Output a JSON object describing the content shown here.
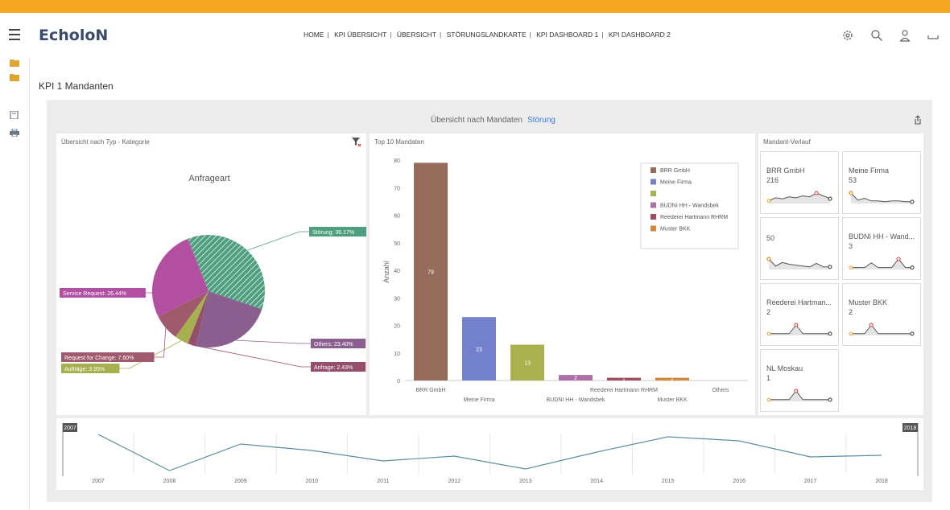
{
  "app": {
    "title": "EcholoN"
  },
  "nav": [
    "HOME",
    "KPI ÜBERSICHT",
    "ÜBERSICHT",
    "STÖRUNGSLANDKARTE",
    "KPI DASHBOARD 1",
    "KPI DASHBOARD 2"
  ],
  "page_title": "KPI 1 Mandanten",
  "panel": {
    "title": "Übersicht nach Mandaten",
    "filter_link": "Störung"
  },
  "pie_card": {
    "title": "Übersicht nach Typ - Kategorie"
  },
  "bar_card": {
    "title": "Top 10 Mandaten"
  },
  "spark_card": {
    "title": "Mandant-Verlauf"
  },
  "colors": {
    "accent": "#f5a623",
    "brand": "#3a4a6b",
    "link": "#3a7bd5"
  },
  "icons": [
    "menu-icon",
    "gear-icon",
    "search-icon",
    "user-icon",
    "folder-icon",
    "book-icon",
    "print-icon",
    "share-icon",
    "filter-clear-icon"
  ],
  "chart_data": [
    {
      "type": "pie",
      "title": "Anfrageart",
      "slices": [
        {
          "label": "Störung: 36.17%",
          "value": 36.17,
          "color": "#4f9e7f"
        },
        {
          "label": "Others: 23.40%",
          "value": 23.4,
          "color": "#8a5f8f"
        },
        {
          "label": "Anfrage: 2.43%",
          "value": 2.43,
          "color": "#94506a"
        },
        {
          "label": "Aufträge: 3.95%",
          "value": 3.95,
          "color": "#a6b04e"
        },
        {
          "label": "Request for Change: 7.60%",
          "value": 7.6,
          "color": "#a05a6e"
        },
        {
          "label": "Service Request: 26.44%",
          "value": 26.44,
          "color": "#b24fa0"
        }
      ]
    },
    {
      "type": "bar",
      "ylabel": "Anzahl",
      "ylim": [
        0,
        80
      ],
      "yticks": [
        0,
        10,
        20,
        30,
        40,
        50,
        60,
        70,
        80
      ],
      "categories": [
        "BRR GmbH",
        "Meine Firma",
        "",
        "BUDNI HH - Wandsbek",
        "Reederei Hartmann RHRM",
        "Muster BKK",
        "Others"
      ],
      "values": [
        79,
        23,
        13,
        2,
        1,
        1,
        0
      ],
      "colors": [
        "#956b5a",
        "#7381cc",
        "#a9b24e",
        "#ae6fa8",
        "#a24c5e",
        "#d1883a",
        "#cccccc"
      ],
      "legend": [
        {
          "label": "BRR GmbH",
          "color": "#956b5a"
        },
        {
          "label": "Meine Firma",
          "color": "#7381cc"
        },
        {
          "label": "",
          "color": "#a9b24e"
        },
        {
          "label": "BUDNI HH - Wandsbek",
          "color": "#ae6fa8"
        },
        {
          "label": "Reederei Hartmann RHRM",
          "color": "#a24c5e"
        },
        {
          "label": "Muster BKK",
          "color": "#d1883a"
        }
      ]
    },
    {
      "type": "line",
      "x": [
        "2007",
        "2008",
        "2009",
        "2010",
        "2011",
        "2012",
        "2013",
        "2014",
        "2015",
        "2016",
        "2017",
        "2018"
      ],
      "values": [
        48,
        3,
        36,
        28,
        15,
        21,
        5,
        26,
        45,
        40,
        20,
        22
      ],
      "range_start_label": "2007",
      "range_end_label": "2018"
    }
  ],
  "sparklines": [
    {
      "name": "BRR GmbH",
      "value": "216",
      "points": [
        3,
        6,
        5,
        7,
        6,
        8,
        7,
        11,
        8,
        5
      ]
    },
    {
      "name": "Meine Firma",
      "value": "53",
      "points": [
        12,
        4,
        6,
        3,
        3,
        2,
        3,
        3,
        2,
        2
      ]
    },
    {
      "name": "",
      "value": "50",
      "points": [
        12,
        4,
        8,
        6,
        5,
        4,
        3,
        7,
        3,
        3
      ]
    },
    {
      "name": "BUDNI HH - Wand...",
      "value": "3",
      "points": [
        2,
        2,
        2,
        7,
        2,
        2,
        2,
        11,
        2,
        2
      ]
    },
    {
      "name": "Reederei Hartman...",
      "value": "2",
      "points": [
        2,
        2,
        2,
        2,
        12,
        2,
        2,
        2,
        2,
        2
      ]
    },
    {
      "name": "Muster BKK",
      "value": "2",
      "points": [
        2,
        2,
        2,
        12,
        2,
        2,
        2,
        2,
        2,
        2
      ]
    },
    {
      "name": "NL Moskau",
      "value": "1",
      "points": [
        2,
        2,
        2,
        2,
        12,
        2,
        2,
        2,
        2,
        2
      ]
    }
  ]
}
